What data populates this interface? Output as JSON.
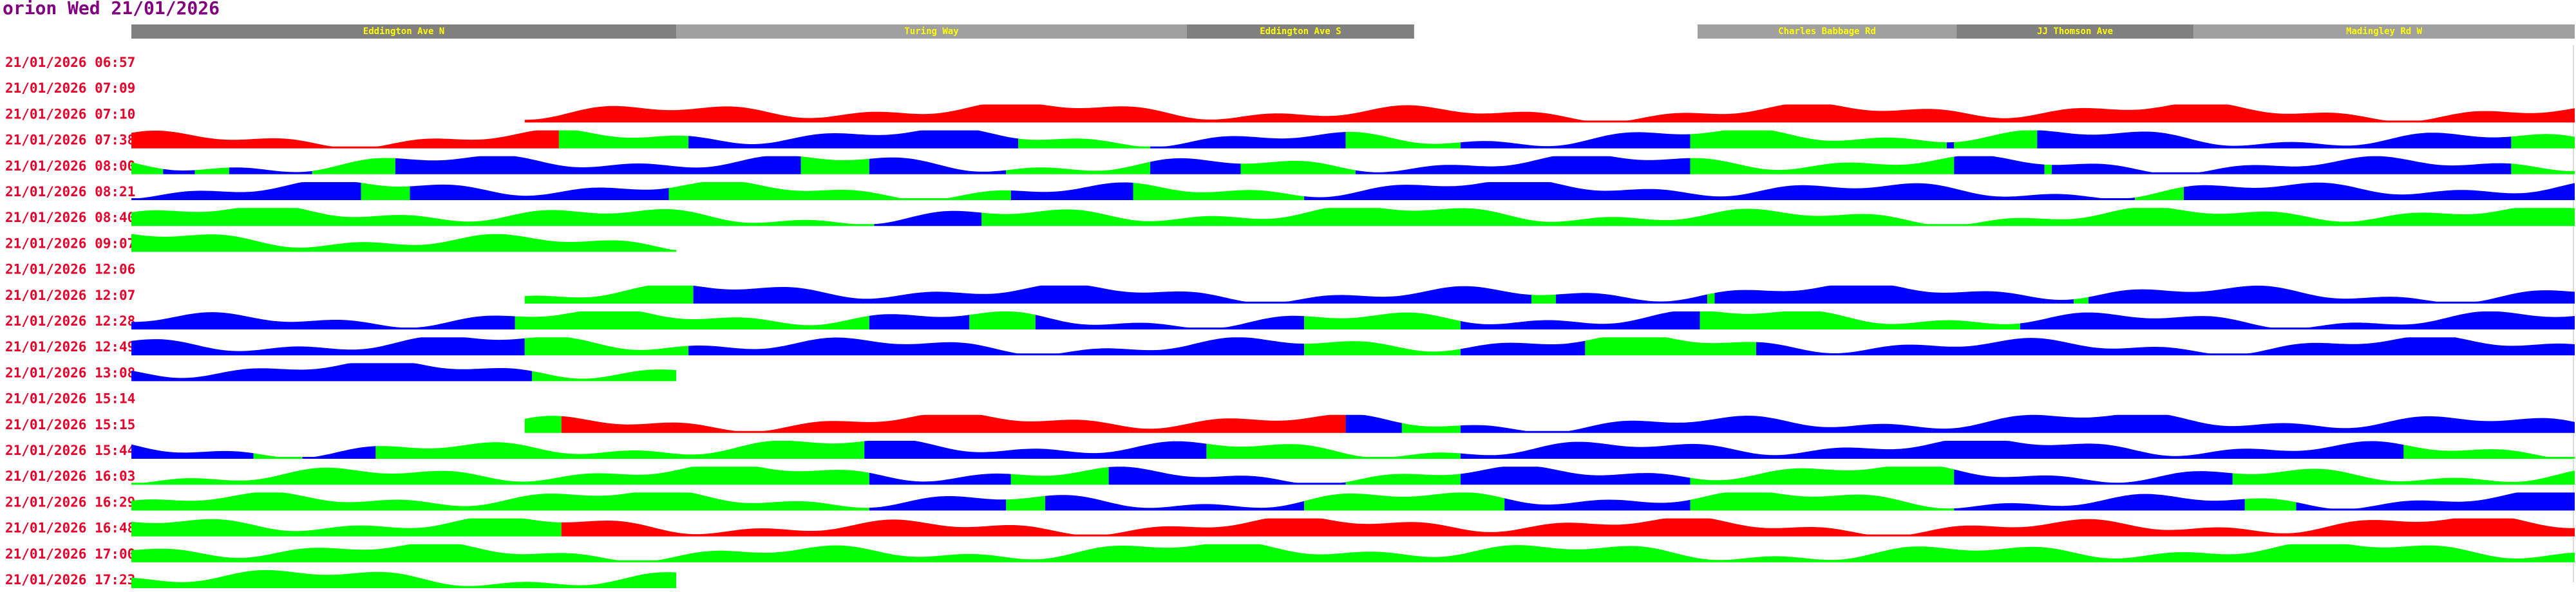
{
  "header": {
    "app": "orion",
    "date": "Wed 21/01/2026"
  },
  "roads": [
    {
      "name": "Eddington Ave N",
      "start": 0,
      "end": 22.3,
      "color": "#808080"
    },
    {
      "name": "Turing Way",
      "start": 22.3,
      "end": 43.2,
      "color": "#a0a0a0"
    },
    {
      "name": "Eddington Ave S",
      "start": 43.2,
      "end": 52.5,
      "color": "#808080"
    },
    {
      "name": "Charles Babbage Rd",
      "start": 64.1,
      "end": 74.7,
      "color": "#a0a0a0"
    },
    {
      "name": "JJ Thomson Ave",
      "start": 74.7,
      "end": 84.4,
      "color": "#808080"
    },
    {
      "name": "Madingley Rd W",
      "start": 84.4,
      "end": 100,
      "color": "#a0a0a0"
    }
  ],
  "trips": [
    {
      "time": "21/01/2026 06:57",
      "segments": []
    },
    {
      "time": "21/01/2026 07:09",
      "segments": []
    },
    {
      "time": "21/01/2026 07:10",
      "segments": [
        {
          "start": 16.1,
          "end": 100,
          "color": "#ff0000"
        }
      ]
    },
    {
      "time": "21/01/2026 07:38",
      "segments": [
        {
          "start": 0,
          "end": 17.5,
          "color": "#ff0000"
        },
        {
          "start": 17.5,
          "end": 22.8,
          "color": "#00ff00"
        },
        {
          "start": 22.8,
          "end": 36.3,
          "color": "#0000ff"
        },
        {
          "start": 36.3,
          "end": 41.7,
          "color": "#00ff00"
        },
        {
          "start": 41.7,
          "end": 49.7,
          "color": "#0000ff"
        },
        {
          "start": 49.7,
          "end": 54.4,
          "color": "#00ff00"
        },
        {
          "start": 54.4,
          "end": 63.8,
          "color": "#0000ff"
        },
        {
          "start": 63.8,
          "end": 74.3,
          "color": "#00ff00"
        },
        {
          "start": 74.3,
          "end": 74.6,
          "color": "#0000ff"
        },
        {
          "start": 74.6,
          "end": 78,
          "color": "#00ff00"
        },
        {
          "start": 78,
          "end": 97.4,
          "color": "#0000ff"
        },
        {
          "start": 97.4,
          "end": 100,
          "color": "#00ff00"
        }
      ]
    },
    {
      "time": "21/01/2026 08:00",
      "segments": [
        {
          "start": 0,
          "end": 1.3,
          "color": "#00ff00"
        },
        {
          "start": 1.3,
          "end": 2.6,
          "color": "#0000ff"
        },
        {
          "start": 2.6,
          "end": 4,
          "color": "#00ff00"
        },
        {
          "start": 4,
          "end": 7.4,
          "color": "#0000ff"
        },
        {
          "start": 7.4,
          "end": 10.8,
          "color": "#00ff00"
        },
        {
          "start": 10.8,
          "end": 27.4,
          "color": "#0000ff"
        },
        {
          "start": 27.4,
          "end": 30.2,
          "color": "#00ff00"
        },
        {
          "start": 30.2,
          "end": 35.8,
          "color": "#0000ff"
        },
        {
          "start": 35.8,
          "end": 41.7,
          "color": "#00ff00"
        },
        {
          "start": 41.7,
          "end": 45.4,
          "color": "#0000ff"
        },
        {
          "start": 45.4,
          "end": 50.1,
          "color": "#00ff00"
        },
        {
          "start": 50.1,
          "end": 63.8,
          "color": "#0000ff"
        },
        {
          "start": 63.8,
          "end": 74.6,
          "color": "#00ff00"
        },
        {
          "start": 74.6,
          "end": 78.3,
          "color": "#0000ff"
        },
        {
          "start": 78.3,
          "end": 78.6,
          "color": "#00ff00"
        },
        {
          "start": 78.6,
          "end": 97.4,
          "color": "#0000ff"
        },
        {
          "start": 97.4,
          "end": 100,
          "color": "#00ff00"
        }
      ]
    },
    {
      "time": "21/01/2026 08:21",
      "segments": [
        {
          "start": 0,
          "end": 9.4,
          "color": "#0000ff"
        },
        {
          "start": 9.4,
          "end": 11.4,
          "color": "#00ff00"
        },
        {
          "start": 11.4,
          "end": 22,
          "color": "#0000ff"
        },
        {
          "start": 22,
          "end": 36,
          "color": "#00ff00"
        },
        {
          "start": 36,
          "end": 41,
          "color": "#0000ff"
        },
        {
          "start": 41,
          "end": 48,
          "color": "#00ff00"
        },
        {
          "start": 48,
          "end": 82,
          "color": "#0000ff"
        },
        {
          "start": 82,
          "end": 84,
          "color": "#00ff00"
        },
        {
          "start": 84,
          "end": 100,
          "color": "#0000ff"
        }
      ]
    },
    {
      "time": "21/01/2026 08:40",
      "segments": [
        {
          "start": 0,
          "end": 30.4,
          "color": "#00ff00"
        },
        {
          "start": 30.4,
          "end": 34.8,
          "color": "#0000ff"
        },
        {
          "start": 34.8,
          "end": 100,
          "color": "#00ff00"
        }
      ]
    },
    {
      "time": "21/01/2026 09:07",
      "segments": [
        {
          "start": 0,
          "end": 22.3,
          "color": "#00ff00"
        }
      ]
    },
    {
      "time": "21/01/2026 12:06",
      "segments": []
    },
    {
      "time": "21/01/2026 12:07",
      "segments": [
        {
          "start": 16.1,
          "end": 23,
          "color": "#00ff00"
        },
        {
          "start": 23,
          "end": 57.3,
          "color": "#0000ff"
        },
        {
          "start": 57.3,
          "end": 58.3,
          "color": "#00ff00"
        },
        {
          "start": 58.3,
          "end": 64.5,
          "color": "#0000ff"
        },
        {
          "start": 64.5,
          "end": 64.8,
          "color": "#00ff00"
        },
        {
          "start": 64.8,
          "end": 79.5,
          "color": "#0000ff"
        },
        {
          "start": 79.5,
          "end": 80.1,
          "color": "#00ff00"
        },
        {
          "start": 80.1,
          "end": 100,
          "color": "#0000ff"
        }
      ]
    },
    {
      "time": "21/01/2026 12:28",
      "segments": [
        {
          "start": 0,
          "end": 15.7,
          "color": "#0000ff"
        },
        {
          "start": 15.7,
          "end": 30.2,
          "color": "#00ff00"
        },
        {
          "start": 30.2,
          "end": 34.3,
          "color": "#0000ff"
        },
        {
          "start": 34.3,
          "end": 37,
          "color": "#00ff00"
        },
        {
          "start": 37,
          "end": 48,
          "color": "#0000ff"
        },
        {
          "start": 48,
          "end": 54.4,
          "color": "#00ff00"
        },
        {
          "start": 54.4,
          "end": 64.2,
          "color": "#0000ff"
        },
        {
          "start": 64.2,
          "end": 77.3,
          "color": "#00ff00"
        },
        {
          "start": 77.3,
          "end": 100,
          "color": "#0000ff"
        }
      ]
    },
    {
      "time": "21/01/2026 12:49",
      "segments": [
        {
          "start": 0,
          "end": 16.1,
          "color": "#0000ff"
        },
        {
          "start": 16.1,
          "end": 22.8,
          "color": "#00ff00"
        },
        {
          "start": 22.8,
          "end": 48,
          "color": "#0000ff"
        },
        {
          "start": 48,
          "end": 54.4,
          "color": "#00ff00"
        },
        {
          "start": 54.4,
          "end": 59.5,
          "color": "#0000ff"
        },
        {
          "start": 59.5,
          "end": 66.5,
          "color": "#00ff00"
        },
        {
          "start": 66.5,
          "end": 100,
          "color": "#0000ff"
        }
      ]
    },
    {
      "time": "21/01/2026 13:08",
      "segments": [
        {
          "start": 0,
          "end": 16.4,
          "color": "#0000ff"
        },
        {
          "start": 16.4,
          "end": 22.3,
          "color": "#00ff00"
        }
      ]
    },
    {
      "time": "21/01/2026 15:14",
      "segments": []
    },
    {
      "time": "21/01/2026 15:15",
      "segments": [
        {
          "start": 16.1,
          "end": 17.6,
          "color": "#00ff00"
        },
        {
          "start": 17.6,
          "end": 49.7,
          "color": "#ff0000"
        },
        {
          "start": 49.7,
          "end": 52,
          "color": "#0000ff"
        },
        {
          "start": 52,
          "end": 54.4,
          "color": "#00ff00"
        },
        {
          "start": 54.4,
          "end": 100,
          "color": "#0000ff"
        }
      ]
    },
    {
      "time": "21/01/2026 15:44",
      "segments": [
        {
          "start": 0,
          "end": 5,
          "color": "#0000ff"
        },
        {
          "start": 5,
          "end": 7,
          "color": "#00ff00"
        },
        {
          "start": 7,
          "end": 10,
          "color": "#0000ff"
        },
        {
          "start": 10,
          "end": 30,
          "color": "#00ff00"
        },
        {
          "start": 30,
          "end": 44,
          "color": "#0000ff"
        },
        {
          "start": 44,
          "end": 54.4,
          "color": "#00ff00"
        },
        {
          "start": 54.4,
          "end": 93,
          "color": "#0000ff"
        },
        {
          "start": 93,
          "end": 100,
          "color": "#00ff00"
        }
      ]
    },
    {
      "time": "21/01/2026 16:03",
      "segments": [
        {
          "start": 0,
          "end": 30.2,
          "color": "#00ff00"
        },
        {
          "start": 30.2,
          "end": 36,
          "color": "#0000ff"
        },
        {
          "start": 36,
          "end": 40,
          "color": "#00ff00"
        },
        {
          "start": 40,
          "end": 49.7,
          "color": "#0000ff"
        },
        {
          "start": 49.7,
          "end": 54.4,
          "color": "#00ff00"
        },
        {
          "start": 54.4,
          "end": 63.8,
          "color": "#0000ff"
        },
        {
          "start": 63.8,
          "end": 74.6,
          "color": "#00ff00"
        },
        {
          "start": 74.6,
          "end": 86,
          "color": "#0000ff"
        },
        {
          "start": 86,
          "end": 100,
          "color": "#00ff00"
        }
      ]
    },
    {
      "time": "21/01/2026 16:29",
      "segments": [
        {
          "start": 0,
          "end": 30.2,
          "color": "#00ff00"
        },
        {
          "start": 30.2,
          "end": 35.8,
          "color": "#0000ff"
        },
        {
          "start": 35.8,
          "end": 37.4,
          "color": "#00ff00"
        },
        {
          "start": 37.4,
          "end": 48,
          "color": "#0000ff"
        },
        {
          "start": 48,
          "end": 56.2,
          "color": "#00ff00"
        },
        {
          "start": 56.2,
          "end": 63.8,
          "color": "#0000ff"
        },
        {
          "start": 63.8,
          "end": 74.6,
          "color": "#00ff00"
        },
        {
          "start": 74.6,
          "end": 86.5,
          "color": "#0000ff"
        },
        {
          "start": 86.5,
          "end": 88.6,
          "color": "#00ff00"
        },
        {
          "start": 88.6,
          "end": 100,
          "color": "#0000ff"
        }
      ]
    },
    {
      "time": "21/01/2026 16:48",
      "segments": [
        {
          "start": 0,
          "end": 17.6,
          "color": "#00ff00"
        },
        {
          "start": 17.6,
          "end": 100,
          "color": "#ff0000"
        }
      ]
    },
    {
      "time": "21/01/2026 17:00",
      "segments": [
        {
          "start": 0,
          "end": 100,
          "color": "#00ff00"
        }
      ]
    },
    {
      "time": "21/01/2026 17:23",
      "segments": [
        {
          "start": 0,
          "end": 22.3,
          "color": "#00ff00"
        }
      ]
    }
  ]
}
